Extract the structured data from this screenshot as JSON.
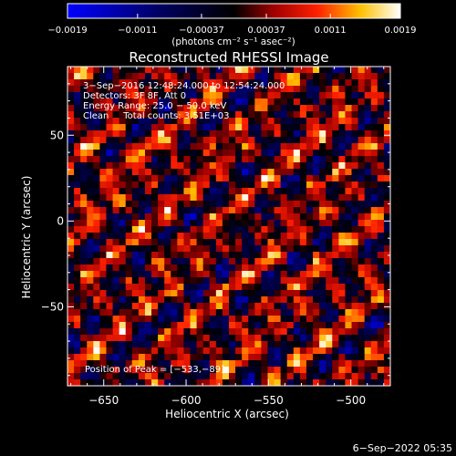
{
  "chart_data": {
    "type": "heatmap",
    "title": "Reconstructed RHESSI Image",
    "xlabel": "Heliocentric X (arcsec)",
    "ylabel": "Heliocentric Y (arcsec)",
    "xlim": [
      -672,
      -476
    ],
    "ylim": [
      -96,
      90
    ],
    "xticks": [
      -650,
      -600,
      -550,
      -500
    ],
    "xtick_labels": [
      "−650",
      "−600",
      "−550",
      "−500"
    ],
    "yticks": [
      50,
      0,
      -50
    ],
    "ytick_labels": [
      "50",
      "0",
      "−50"
    ],
    "colorbar": {
      "range": [
        -0.0019,
        0.0019
      ],
      "ticks": [
        -0.0019,
        -0.0011,
        -0.00037,
        0.00037,
        0.0011,
        0.0019
      ],
      "tick_labels": [
        "−0.0019",
        "−0.0011",
        "−0.00037",
        "0.00037",
        "0.0011",
        "0.0019"
      ],
      "unit_label": "(photons cm⁻² s⁻¹ asec⁻²)",
      "colors": [
        "#0000ff",
        "#000000",
        "#ff0000",
        "#ffcc00",
        "#ffffff"
      ]
    },
    "annotations": [
      "3−Sep−2016 12:48:24.000 to 12:54:24.000",
      "Detectors: 3F 8F, Att 0",
      "Energy Range: 25.0 − 50.0 keV",
      "Clean     Total counts: 3.51E+03"
    ],
    "peak_label": "Position of Peak = [−533,−89]",
    "peak": [
      -533,
      -89
    ],
    "grid": false
  },
  "footer": {
    "timestamp": "6−Sep−2022 05:35"
  }
}
